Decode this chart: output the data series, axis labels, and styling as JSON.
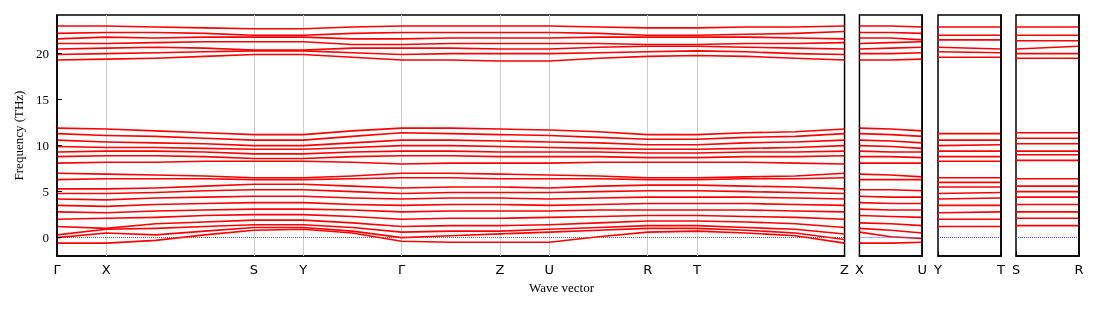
{
  "chart_data": [
    {
      "type": "line",
      "ylabel": "Frequency (THz)",
      "xlabel": "Wave vector",
      "grid": "x",
      "marker": "none",
      "categories": [
        "Γ",
        "X",
        null,
        null,
        "S",
        "Y",
        null,
        "Γ",
        null,
        "Z",
        "U",
        null,
        "R",
        "T",
        null,
        null,
        "Z"
      ],
      "ylim": [
        -2,
        24.2
      ],
      "yticks": [
        0,
        5,
        10,
        15,
        20
      ],
      "ref_lines": [
        {
          "axis": "y",
          "value": 0,
          "color": "#5555ff",
          "line_style": "dotted"
        }
      ],
      "series": [
        {
          "color": "#ff0000",
          "values": [
            -0.6,
            -0.6,
            -0.3,
            0.3,
            0.8,
            0.9,
            0.5,
            -0.4,
            -0.5,
            -0.5,
            -0.5,
            0.1,
            0.6,
            0.7,
            0.5,
            0.2,
            -0.6
          ]
        },
        {
          "color": "#ff0000",
          "values": [
            0,
            0.5,
            0.3,
            0.7,
            1.1,
            1.1,
            0.7,
            0,
            0.2,
            0.4,
            0.6,
            0.8,
            1.0,
            1.0,
            0.8,
            0.5,
            -0.2
          ]
        },
        {
          "color": "#ff0000",
          "values": [
            0.3,
            0.9,
            1.0,
            1.2,
            1.4,
            1.4,
            1.1,
            0.6,
            0.7,
            0.7,
            0.9,
            1.1,
            1.3,
            1.3,
            1.1,
            0.9,
            0.4
          ]
        },
        {
          "color": "#ff0000",
          "values": [
            1.2,
            1.0,
            1.5,
            1.7,
            1.9,
            1.9,
            1.6,
            1.2,
            1.3,
            1.3,
            1.4,
            1.6,
            1.8,
            1.8,
            1.7,
            1.5,
            1.1
          ]
        },
        {
          "color": "#ff0000",
          "values": [
            2.0,
            2.1,
            2.2,
            2.4,
            2.5,
            2.5,
            2.3,
            2.0,
            2.1,
            2.1,
            2.2,
            2.3,
            2.4,
            2.4,
            2.3,
            2.2,
            2.0
          ]
        },
        {
          "color": "#ff0000",
          "values": [
            2.8,
            2.7,
            2.9,
            3.0,
            3.1,
            3.1,
            3.0,
            2.8,
            2.9,
            2.9,
            2.9,
            3.0,
            3.0,
            3.0,
            3.0,
            2.9,
            2.8
          ]
        },
        {
          "color": "#ff0000",
          "values": [
            3.5,
            3.4,
            3.6,
            3.7,
            3.8,
            3.8,
            3.6,
            3.5,
            3.6,
            3.6,
            3.5,
            3.6,
            3.7,
            3.7,
            3.7,
            3.6,
            3.5
          ]
        },
        {
          "color": "#ff0000",
          "values": [
            4.2,
            4.1,
            4.3,
            4.4,
            4.5,
            4.5,
            4.3,
            4.2,
            4.3,
            4.3,
            4.2,
            4.3,
            4.4,
            4.4,
            4.4,
            4.3,
            4.2
          ]
        },
        {
          "color": "#ff0000",
          "values": [
            4.8,
            4.8,
            4.9,
            5.1,
            5.2,
            5.2,
            5.0,
            4.8,
            4.9,
            4.9,
            4.9,
            5.0,
            5.1,
            5.1,
            5.0,
            4.9,
            4.8
          ]
        },
        {
          "color": "#ff0000",
          "values": [
            5.3,
            5.3,
            5.4,
            5.6,
            5.8,
            5.8,
            5.6,
            5.4,
            5.5,
            5.5,
            5.4,
            5.6,
            5.7,
            5.7,
            5.6,
            5.5,
            5.3
          ]
        },
        {
          "color": "#ff0000",
          "values": [
            6.3,
            6.4,
            6.4,
            6.4,
            6.3,
            6.3,
            6.4,
            6.5,
            6.5,
            6.4,
            6.4,
            6.4,
            6.3,
            6.3,
            6.4,
            6.4,
            6.5
          ]
        },
        {
          "color": "#ff0000",
          "values": [
            7.0,
            6.9,
            6.8,
            6.7,
            6.5,
            6.5,
            6.7,
            7.0,
            7.0,
            6.9,
            6.8,
            6.7,
            6.5,
            6.5,
            6.6,
            6.7,
            7.0
          ]
        },
        {
          "color": "#ff0000",
          "values": [
            8.1,
            8.2,
            8.2,
            8.3,
            8.3,
            8.3,
            8.2,
            8.0,
            8.1,
            8.1,
            8.1,
            8.2,
            8.2,
            8.2,
            8.2,
            8.1,
            8.0
          ]
        },
        {
          "color": "#ff0000",
          "values": [
            8.8,
            8.9,
            8.9,
            8.8,
            8.6,
            8.6,
            8.8,
            8.9,
            8.9,
            8.8,
            8.8,
            8.8,
            8.7,
            8.7,
            8.8,
            8.8,
            8.9
          ]
        },
        {
          "color": "#ff0000",
          "values": [
            9.3,
            9.4,
            9.4,
            9.3,
            9.1,
            9.1,
            9.3,
            9.4,
            9.4,
            9.3,
            9.3,
            9.3,
            9.2,
            9.2,
            9.3,
            9.3,
            9.4
          ]
        },
        {
          "color": "#ff0000",
          "values": [
            9.9,
            9.8,
            9.8,
            9.7,
            9.6,
            9.6,
            9.8,
            10.0,
            10.0,
            9.9,
            9.8,
            9.7,
            9.6,
            9.6,
            9.7,
            9.8,
            10.0
          ]
        },
        {
          "color": "#ff0000",
          "values": [
            10.6,
            10.4,
            10.3,
            10.2,
            10.0,
            10.0,
            10.3,
            10.6,
            10.6,
            10.5,
            10.4,
            10.3,
            10.1,
            10.1,
            10.3,
            10.4,
            10.6
          ]
        },
        {
          "color": "#ff0000",
          "values": [
            11.3,
            11.1,
            11.0,
            10.8,
            10.6,
            10.6,
            11.0,
            11.4,
            11.3,
            11.2,
            11.1,
            10.9,
            10.7,
            10.7,
            10.9,
            11.0,
            11.3
          ]
        },
        {
          "color": "#ff0000",
          "values": [
            11.9,
            11.8,
            11.6,
            11.4,
            11.2,
            11.2,
            11.6,
            11.9,
            11.9,
            11.8,
            11.7,
            11.5,
            11.2,
            11.2,
            11.4,
            11.5,
            11.8
          ]
        },
        {
          "color": "#ff0000",
          "values": [
            19.3,
            19.4,
            19.5,
            19.7,
            19.9,
            19.9,
            19.6,
            19.3,
            19.3,
            19.2,
            19.2,
            19.5,
            19.7,
            19.8,
            19.7,
            19.5,
            19.3
          ]
        },
        {
          "color": "#ff0000",
          "values": [
            19.9,
            20.0,
            20.1,
            20.2,
            20.3,
            20.3,
            20.1,
            19.9,
            20.0,
            20.0,
            20.0,
            20.1,
            20.2,
            20.3,
            20.2,
            20.0,
            19.9
          ]
        },
        {
          "color": "#ff0000",
          "values": [
            20.5,
            20.6,
            20.7,
            20.6,
            20.4,
            20.4,
            20.6,
            20.6,
            20.6,
            20.5,
            20.5,
            20.7,
            20.8,
            20.8,
            20.7,
            20.6,
            20.5
          ]
        },
        {
          "color": "#ff0000",
          "values": [
            21.1,
            21.1,
            21.2,
            21.3,
            21.3,
            21.3,
            21.0,
            21.0,
            21.1,
            21.1,
            21.1,
            21.1,
            21.0,
            21.0,
            21.1,
            21.1,
            21.2
          ]
        },
        {
          "color": "#ff0000",
          "values": [
            21.6,
            21.8,
            21.7,
            21.8,
            21.8,
            21.8,
            21.6,
            21.6,
            21.7,
            21.7,
            21.7,
            21.8,
            21.8,
            21.8,
            21.8,
            21.7,
            21.6
          ]
        },
        {
          "color": "#ff0000",
          "values": [
            22.2,
            22.3,
            22.3,
            22.2,
            22.0,
            22.0,
            22.2,
            22.3,
            22.3,
            22.3,
            22.3,
            22.2,
            22.0,
            22.0,
            22.1,
            22.2,
            22.4
          ]
        },
        {
          "color": "#ff0000",
          "values": [
            23.0,
            23.0,
            22.9,
            22.8,
            22.7,
            22.7,
            22.9,
            23.0,
            23.0,
            23.0,
            23.0,
            22.9,
            22.8,
            22.8,
            22.9,
            22.9,
            23.0
          ]
        }
      ]
    },
    {
      "type": "line",
      "marker": "none",
      "tick_labels": "x",
      "categories": [
        "X",
        null,
        "U"
      ],
      "ylim": [
        -2,
        24.2
      ],
      "ref_lines": [
        {
          "axis": "y",
          "value": 0,
          "color": "#5555ff",
          "line_style": "dotted"
        }
      ],
      "series": [
        {
          "color": "#ff0000",
          "values": [
            -0.6,
            -0.6,
            -0.5
          ]
        },
        {
          "color": "#ff0000",
          "values": [
            0.6,
            0.1,
            -0.1
          ]
        },
        {
          "color": "#ff0000",
          "values": [
            1.0,
            0.8,
            0.5
          ]
        },
        {
          "color": "#ff0000",
          "values": [
            1.6,
            1.5,
            1.3
          ]
        },
        {
          "color": "#ff0000",
          "values": [
            2.4,
            2.3,
            2.2
          ]
        },
        {
          "color": "#ff0000",
          "values": [
            3.1,
            3.0,
            3.0
          ]
        },
        {
          "color": "#ff0000",
          "values": [
            3.8,
            3.7,
            3.7
          ]
        },
        {
          "color": "#ff0000",
          "values": [
            4.5,
            4.4,
            4.4
          ]
        },
        {
          "color": "#ff0000",
          "values": [
            5.2,
            5.2,
            5.1
          ]
        },
        {
          "color": "#ff0000",
          "values": [
            6.3,
            6.3,
            6.3
          ]
        },
        {
          "color": "#ff0000",
          "values": [
            6.9,
            6.8,
            6.6
          ]
        },
        {
          "color": "#ff0000",
          "values": [
            8.1,
            8.1,
            8.1
          ]
        },
        {
          "color": "#ff0000",
          "values": [
            8.8,
            8.8,
            8.7
          ]
        },
        {
          "color": "#ff0000",
          "values": [
            9.4,
            9.3,
            9.3
          ]
        },
        {
          "color": "#ff0000",
          "values": [
            10.0,
            9.9,
            9.7
          ]
        },
        {
          "color": "#ff0000",
          "values": [
            10.6,
            10.5,
            10.3
          ]
        },
        {
          "color": "#ff0000",
          "values": [
            11.3,
            11.2,
            11.0
          ]
        },
        {
          "color": "#ff0000",
          "values": [
            11.9,
            11.8,
            11.6
          ]
        },
        {
          "color": "#ff0000",
          "values": [
            19.3,
            19.3,
            19.4
          ]
        },
        {
          "color": "#ff0000",
          "values": [
            20.0,
            20.0,
            20.1
          ]
        },
        {
          "color": "#ff0000",
          "values": [
            20.5,
            20.6,
            20.7
          ]
        },
        {
          "color": "#ff0000",
          "values": [
            21.1,
            21.2,
            21.3
          ]
        },
        {
          "color": "#ff0000",
          "values": [
            21.7,
            21.7,
            21.5
          ]
        },
        {
          "color": "#ff0000",
          "values": [
            22.3,
            22.3,
            22.2
          ]
        },
        {
          "color": "#ff0000",
          "values": [
            23.0,
            23.0,
            22.9
          ]
        }
      ]
    },
    {
      "type": "line",
      "marker": "none",
      "tick_labels": "x",
      "categories": [
        "Y",
        "T"
      ],
      "ylim": [
        -2,
        24.2
      ],
      "ref_lines": [
        {
          "axis": "y",
          "value": 0,
          "color": "#5555ff",
          "line_style": "dotted"
        }
      ],
      "series": [
        {
          "color": "#ff0000",
          "values": [
            1.2,
            1.2
          ]
        },
        {
          "color": "#ff0000",
          "values": [
            2.0,
            2.0
          ]
        },
        {
          "color": "#ff0000",
          "values": [
            2.7,
            2.8
          ]
        },
        {
          "color": "#ff0000",
          "values": [
            3.5,
            3.5
          ]
        },
        {
          "color": "#ff0000",
          "values": [
            4.2,
            4.3
          ]
        },
        {
          "color": "#ff0000",
          "values": [
            4.8,
            4.9
          ]
        },
        {
          "color": "#ff0000",
          "values": [
            5.5,
            5.5
          ]
        },
        {
          "color": "#ff0000",
          "values": [
            6.0,
            6.0
          ]
        },
        {
          "color": "#ff0000",
          "values": [
            6.5,
            6.5
          ]
        },
        {
          "color": "#ff0000",
          "values": [
            8.3,
            8.3
          ]
        },
        {
          "color": "#ff0000",
          "values": [
            8.8,
            8.8
          ]
        },
        {
          "color": "#ff0000",
          "values": [
            9.4,
            9.4
          ]
        },
        {
          "color": "#ff0000",
          "values": [
            10.0,
            10.1
          ]
        },
        {
          "color": "#ff0000",
          "values": [
            10.6,
            10.6
          ]
        },
        {
          "color": "#ff0000",
          "values": [
            11.3,
            11.3
          ]
        },
        {
          "color": "#ff0000",
          "values": [
            19.6,
            19.6
          ]
        },
        {
          "color": "#ff0000",
          "values": [
            20.2,
            20.1
          ]
        },
        {
          "color": "#ff0000",
          "values": [
            20.7,
            20.5
          ]
        },
        {
          "color": "#ff0000",
          "values": [
            21.5,
            21.5
          ]
        },
        {
          "color": "#ff0000",
          "values": [
            22.0,
            22.0
          ]
        },
        {
          "color": "#ff0000",
          "values": [
            22.9,
            22.9
          ]
        }
      ]
    },
    {
      "type": "line",
      "marker": "none",
      "tick_labels": "x",
      "categories": [
        "S",
        "R"
      ],
      "ylim": [
        -2,
        24.2
      ],
      "ref_lines": [
        {
          "axis": "y",
          "value": 0,
          "color": "#5555ff",
          "line_style": "dotted"
        }
      ],
      "series": [
        {
          "color": "#ff0000",
          "values": [
            1.3,
            1.3
          ]
        },
        {
          "color": "#ff0000",
          "values": [
            2.1,
            2.1
          ]
        },
        {
          "color": "#ff0000",
          "values": [
            2.8,
            2.8
          ]
        },
        {
          "color": "#ff0000",
          "values": [
            3.6,
            3.6
          ]
        },
        {
          "color": "#ff0000",
          "values": [
            4.4,
            4.4
          ]
        },
        {
          "color": "#ff0000",
          "values": [
            5.0,
            5.0
          ]
        },
        {
          "color": "#ff0000",
          "values": [
            5.6,
            5.6
          ]
        },
        {
          "color": "#ff0000",
          "values": [
            6.4,
            6.4
          ]
        },
        {
          "color": "#ff0000",
          "values": [
            8.4,
            8.4
          ]
        },
        {
          "color": "#ff0000",
          "values": [
            9.0,
            9.0
          ]
        },
        {
          "color": "#ff0000",
          "values": [
            9.4,
            9.4
          ]
        },
        {
          "color": "#ff0000",
          "values": [
            10.2,
            10.2
          ]
        },
        {
          "color": "#ff0000",
          "values": [
            10.8,
            10.8
          ]
        },
        {
          "color": "#ff0000",
          "values": [
            11.4,
            11.4
          ]
        },
        {
          "color": "#ff0000",
          "values": [
            19.5,
            19.5
          ]
        },
        {
          "color": "#ff0000",
          "values": [
            20.0,
            20.0
          ]
        },
        {
          "color": "#ff0000",
          "values": [
            20.5,
            20.8
          ]
        },
        {
          "color": "#ff0000",
          "values": [
            21.4,
            21.4
          ]
        },
        {
          "color": "#ff0000",
          "values": [
            22.0,
            22.0
          ]
        },
        {
          "color": "#ff0000",
          "values": [
            22.9,
            22.9
          ]
        }
      ]
    }
  ]
}
